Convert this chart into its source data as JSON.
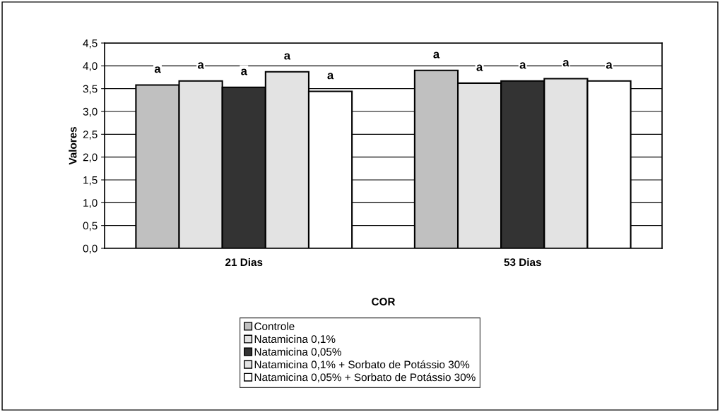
{
  "chart_data": {
    "type": "bar",
    "xlabel": "COR",
    "ylabel": "Valores",
    "categories": [
      "21 Dias",
      "53 Dias"
    ],
    "series": [
      {
        "name": "Controle",
        "color": "#c0c0c0",
        "values": [
          3.58,
          3.9
        ],
        "value_labels": [
          "a",
          "a"
        ]
      },
      {
        "name": "Natamicina 0,1%",
        "color": "#e3e3e3",
        "values": [
          3.67,
          3.62
        ],
        "value_labels": [
          "a",
          "a"
        ]
      },
      {
        "name": "Natamicina 0,05%",
        "color": "#333333",
        "values": [
          3.53,
          3.67
        ],
        "value_labels": [
          "a",
          "a"
        ]
      },
      {
        "name": "Natamicina 0,1% + Sorbato de Potássio 30%",
        "color": "#e3e3e3",
        "values": [
          3.87,
          3.72
        ],
        "value_labels": [
          "a",
          "a"
        ]
      },
      {
        "name": "Natamicina 0,05% + Sorbato de Potássio 30%",
        "color": "#ffffff",
        "values": [
          3.44,
          3.67
        ],
        "value_labels": [
          "a",
          "a"
        ]
      }
    ],
    "ylim": [
      0,
      4.5
    ],
    "yticks": [
      {
        "value": 0,
        "label": "0,0"
      },
      {
        "value": 0.5,
        "label": "0,5"
      },
      {
        "value": 1,
        "label": "1,0"
      },
      {
        "value": 1.5,
        "label": "1,5"
      },
      {
        "value": 2,
        "label": "2,0"
      },
      {
        "value": 2.5,
        "label": "2,5"
      },
      {
        "value": 3,
        "label": "3,0"
      },
      {
        "value": 3.5,
        "label": "3,5"
      },
      {
        "value": 4,
        "label": "4,0"
      },
      {
        "value": 4.5,
        "label": "4,5"
      }
    ],
    "grid": "y",
    "legend": "bottom"
  }
}
